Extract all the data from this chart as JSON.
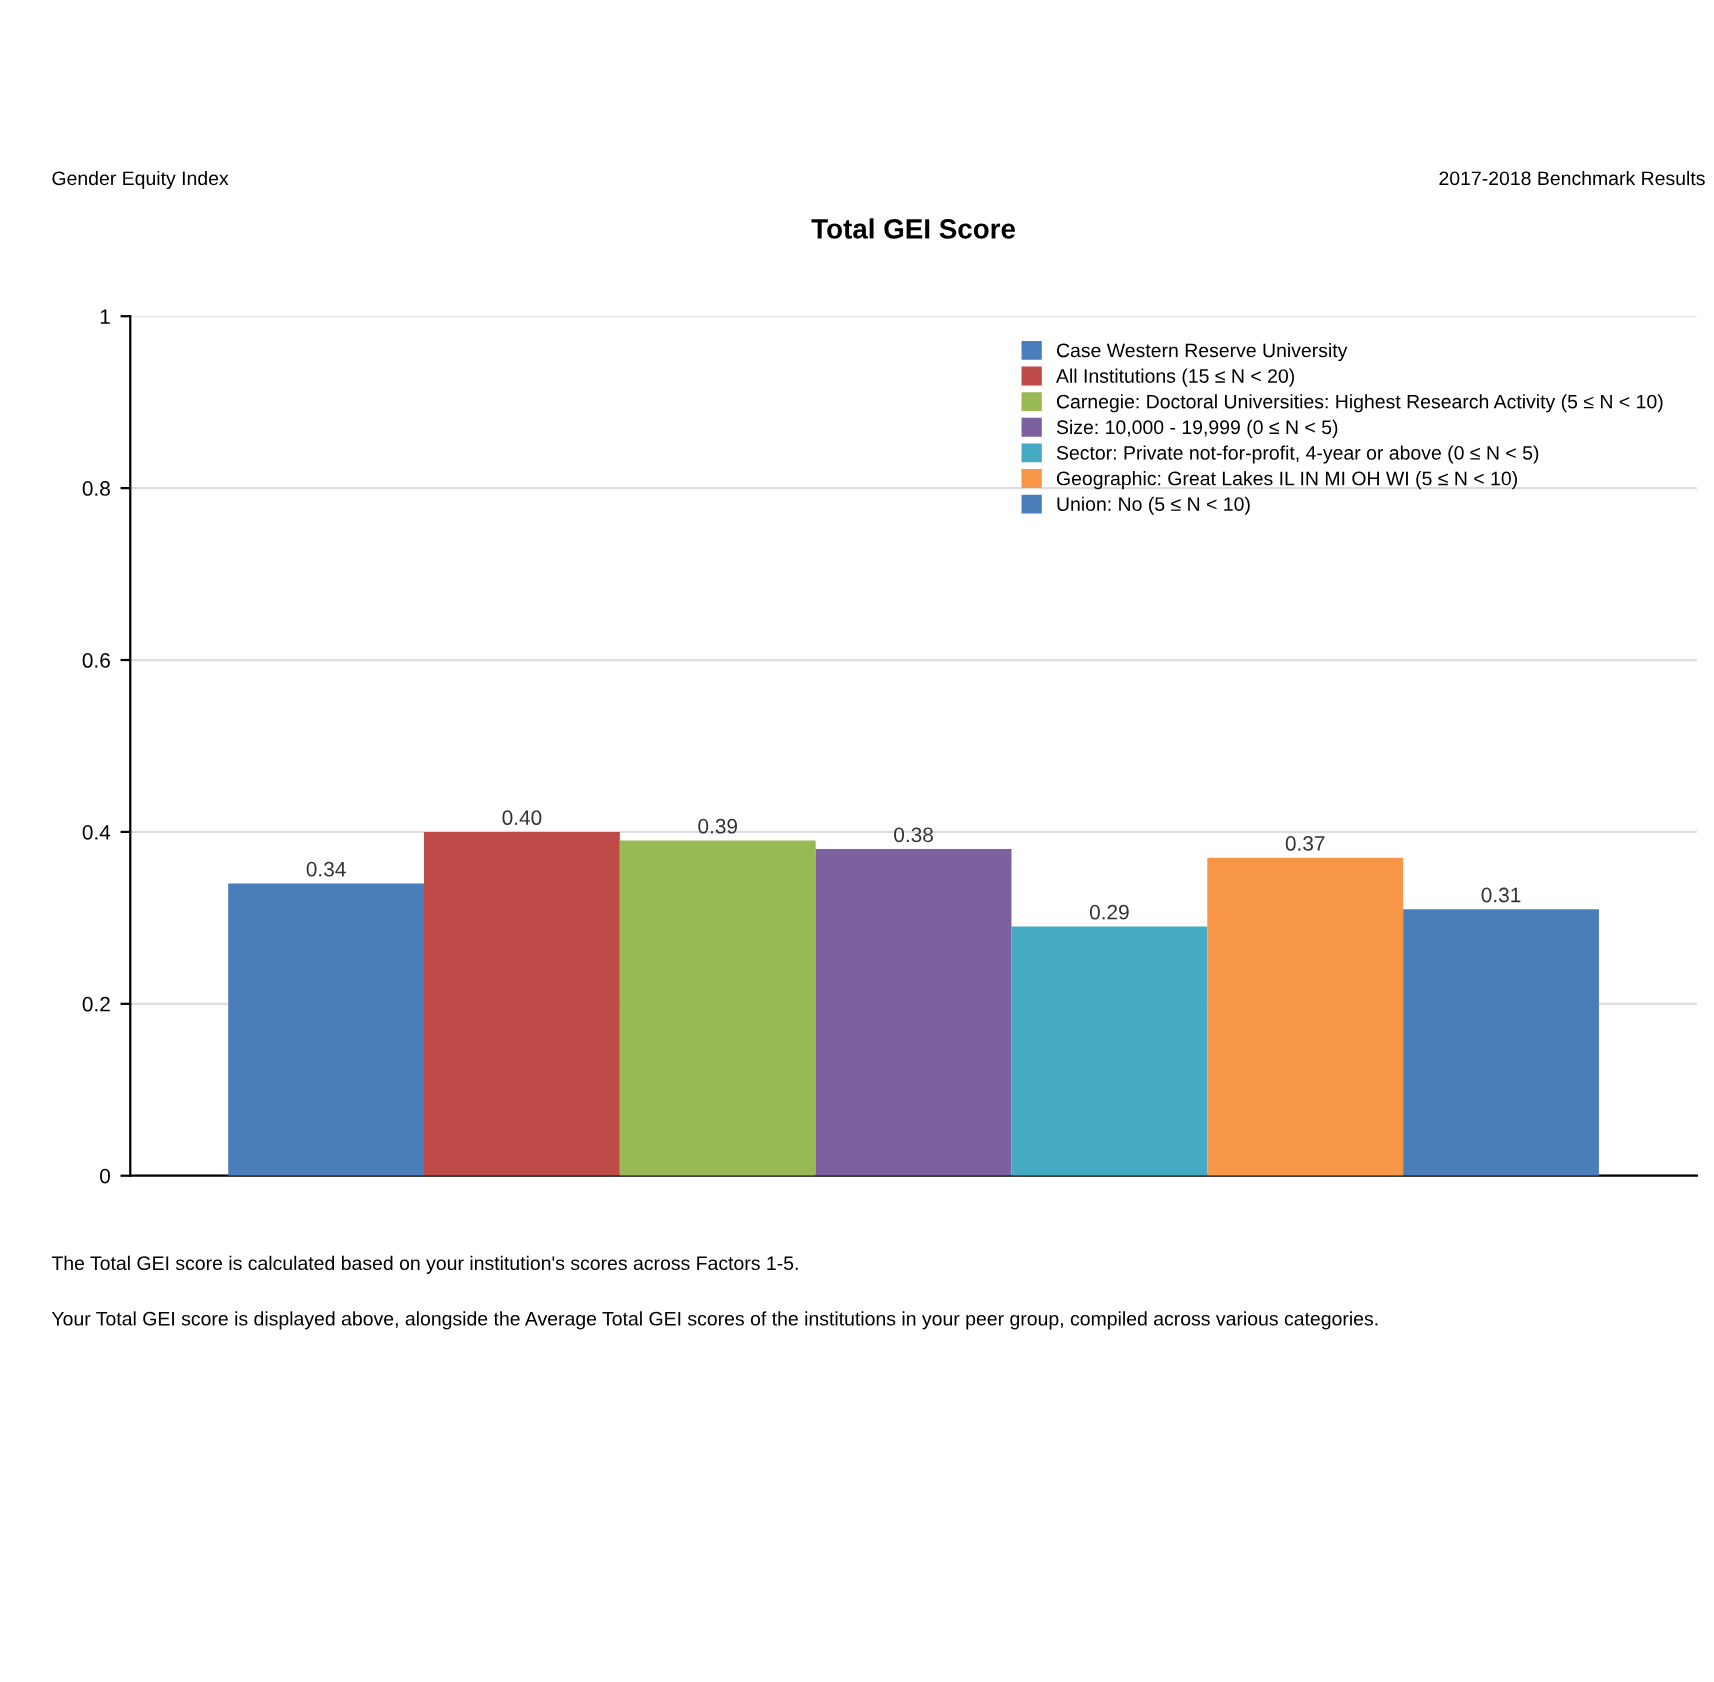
{
  "chart_data": {
    "type": "bar",
    "title": "Total GEI Score",
    "annotations": [
      "Gender Equity Index",
      "2017-2018 Benchmark Results",
      "The Total GEI score is calculated based on your institution's scores across Factors 1-5.",
      "Your Total GEI score is displayed above, alongside the Average Total GEI scores of the institutions in your peer group, compiled across various categories."
    ],
    "categories": [
      null
    ],
    "series": [
      {
        "name": "Case Western Reserve University",
        "color": "#4a7ebb",
        "values": [
          0.34
        ],
        "value_labels": [
          "0.34"
        ]
      },
      {
        "name": "All Institutions (15 ≤ N < 20)",
        "color": "#be4b48",
        "values": [
          0.4
        ],
        "value_labels": [
          "0.40"
        ]
      },
      {
        "name": "Carnegie: Doctoral Universities: Highest Research Activity (5 ≤ N < 10)",
        "color": "#98b954",
        "values": [
          0.39
        ],
        "value_labels": [
          "0.39"
        ]
      },
      {
        "name": "Size: 10,000 - 19,999 (0 ≤ N < 5)",
        "color": "#7d60a0",
        "values": [
          0.38
        ],
        "value_labels": [
          "0.38"
        ]
      },
      {
        "name": "Sector: Private not-for-profit, 4-year or above (0 ≤ N < 5)",
        "color": "#46aac5",
        "values": [
          0.29
        ],
        "value_labels": [
          "0.29"
        ]
      },
      {
        "name": "Geographic: Great Lakes IL IN MI OH WI (5 ≤ N < 10)",
        "color": "#f79646",
        "values": [
          0.37
        ],
        "value_labels": [
          "0.37"
        ]
      },
      {
        "name": "Union: No (5 ≤ N < 10)",
        "color": "#4a7ebb",
        "values": [
          0.31
        ],
        "value_labels": [
          "0.31"
        ]
      }
    ],
    "ylim": [
      0,
      1
    ],
    "yticks": [
      0,
      0.2,
      0.4,
      0.6,
      0.8,
      1
    ],
    "grid": "y",
    "legend": "top right"
  }
}
